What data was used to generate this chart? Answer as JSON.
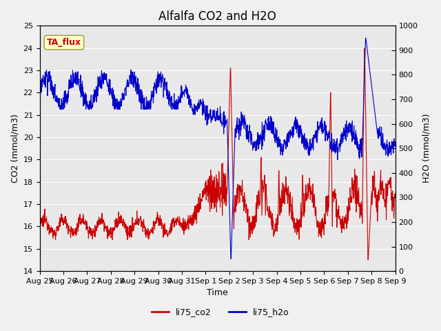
{
  "title": "Alfalfa CO2 and H2O",
  "xlabel": "Time",
  "ylabel_left": "CO2 (mmol/m3)",
  "ylabel_right": "H2O (mmol/m3)",
  "ylim_left": [
    14.0,
    25.0
  ],
  "ylim_right": [
    0,
    1000
  ],
  "yticks_left": [
    14.0,
    15.0,
    16.0,
    17.0,
    18.0,
    19.0,
    20.0,
    21.0,
    22.0,
    23.0,
    24.0,
    25.0
  ],
  "yticks_right": [
    0,
    100,
    200,
    300,
    400,
    500,
    600,
    700,
    800,
    900,
    1000
  ],
  "xtick_labels": [
    "Aug 25",
    "Aug 26",
    "Aug 27",
    "Aug 28",
    "Aug 29",
    "Aug 30",
    "Aug 31",
    "Sep 1",
    "Sep 2",
    "Sep 3",
    "Sep 4",
    "Sep 5",
    "Sep 6",
    "Sep 7",
    "Sep 8",
    "Sep 9"
  ],
  "color_co2": "#cc0000",
  "color_h2o": "#0000cc",
  "label_co2": "li75_co2",
  "label_h2o": "li75_h2o",
  "annotation_text": "TA_flux",
  "annotation_color": "#cc0000",
  "annotation_bg": "#ffffcc",
  "annotation_edge": "#999933",
  "plot_bg": "#e8e8e8",
  "fig_bg": "#f0f0f0",
  "title_fontsize": 12,
  "axis_label_fontsize": 9,
  "tick_fontsize": 8,
  "legend_fontsize": 9,
  "line_width": 0.8
}
